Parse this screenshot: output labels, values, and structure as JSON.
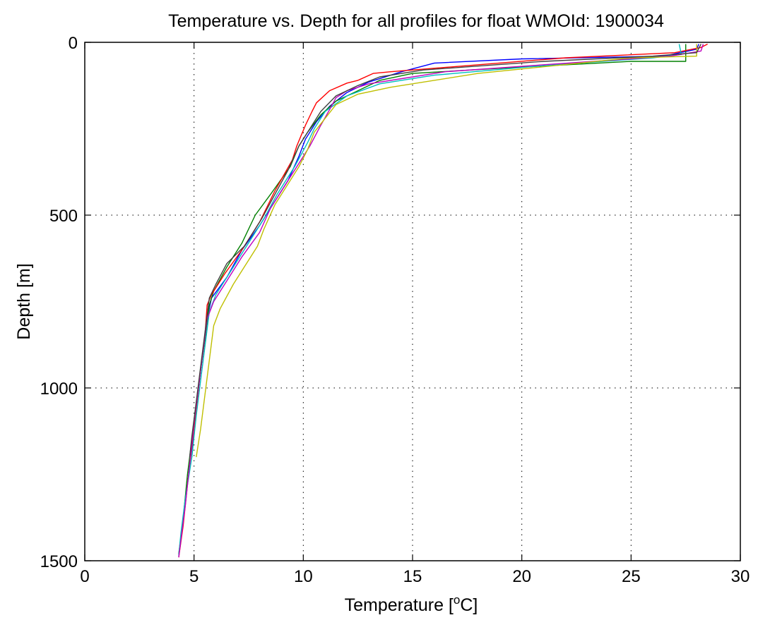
{
  "chart_data": {
    "type": "line",
    "title": "Temperature vs. Depth for all profiles for float WMOId: 1900034",
    "xlabel": "Temperature [",
    "xlabel_sup": "o",
    "xlabel_suffix": "C]",
    "ylabel": "Depth [m]",
    "xlim": [
      0,
      30
    ],
    "ylim": [
      0,
      1500
    ],
    "y_reversed": true,
    "grid": true,
    "x_ticks": [
      0,
      5,
      10,
      15,
      20,
      25,
      30
    ],
    "y_ticks": [
      0,
      500,
      1000,
      1500
    ],
    "series": [
      {
        "color": "#0000ff",
        "points": [
          [
            28.1,
            5
          ],
          [
            28.0,
            20
          ],
          [
            26.5,
            40
          ],
          [
            20.0,
            48
          ],
          [
            16.0,
            60
          ],
          [
            14.5,
            85
          ],
          [
            13.0,
            115
          ],
          [
            12.0,
            145
          ],
          [
            11.2,
            185
          ],
          [
            10.6,
            230
          ],
          [
            10.1,
            280
          ],
          [
            9.8,
            330
          ],
          [
            9.3,
            400
          ],
          [
            8.6,
            470
          ],
          [
            8.0,
            530
          ],
          [
            7.2,
            600
          ],
          [
            6.5,
            680
          ],
          [
            5.8,
            740
          ],
          [
            5.6,
            800
          ],
          [
            5.4,
            900
          ],
          [
            5.2,
            1000
          ],
          [
            5.0,
            1100
          ],
          [
            4.9,
            1200
          ]
        ]
      },
      {
        "color": "#008000",
        "points": [
          [
            27.5,
            5
          ],
          [
            27.5,
            55
          ],
          [
            25.0,
            55
          ],
          [
            19.0,
            75
          ],
          [
            15.0,
            90
          ],
          [
            13.5,
            110
          ],
          [
            12.5,
            140
          ],
          [
            11.5,
            170
          ],
          [
            10.8,
            210
          ],
          [
            10.2,
            260
          ],
          [
            9.8,
            300
          ],
          [
            9.4,
            360
          ],
          [
            8.5,
            440
          ],
          [
            7.8,
            500
          ],
          [
            7.2,
            580
          ],
          [
            6.5,
            650
          ],
          [
            5.9,
            720
          ],
          [
            5.7,
            760
          ],
          [
            5.5,
            860
          ],
          [
            5.3,
            950
          ],
          [
            5.1,
            1050
          ],
          [
            4.9,
            1150
          ],
          [
            4.7,
            1250
          ],
          [
            4.5,
            1380
          ],
          [
            4.3,
            1480
          ]
        ]
      },
      {
        "color": "#ff0000",
        "points": [
          [
            28.5,
            5
          ],
          [
            28.2,
            15
          ],
          [
            27.0,
            30
          ],
          [
            22.0,
            45
          ],
          [
            17.0,
            70
          ],
          [
            14.0,
            85
          ],
          [
            13.2,
            90
          ],
          [
            12.5,
            110
          ],
          [
            12.0,
            118
          ],
          [
            11.2,
            140
          ],
          [
            10.6,
            175
          ],
          [
            10.4,
            200
          ],
          [
            10.1,
            240
          ],
          [
            9.9,
            270
          ],
          [
            9.7,
            300
          ],
          [
            9.5,
            340
          ],
          [
            8.7,
            430
          ],
          [
            8.0,
            520
          ],
          [
            7.2,
            600
          ],
          [
            6.4,
            670
          ],
          [
            5.8,
            730
          ],
          [
            5.6,
            760
          ],
          [
            5.5,
            850
          ],
          [
            5.3,
            950
          ],
          [
            5.1,
            1060
          ],
          [
            4.9,
            1170
          ],
          [
            4.7,
            1280
          ],
          [
            4.5,
            1400
          ],
          [
            4.3,
            1490
          ]
        ]
      },
      {
        "color": "#00bfbf",
        "points": [
          [
            27.2,
            5
          ],
          [
            27.3,
            35
          ],
          [
            26.0,
            45
          ],
          [
            20.5,
            70
          ],
          [
            16.0,
            95
          ],
          [
            13.5,
            120
          ],
          [
            12.0,
            155
          ],
          [
            11.0,
            200
          ],
          [
            10.5,
            250
          ],
          [
            10.2,
            290
          ],
          [
            9.6,
            360
          ],
          [
            8.8,
            440
          ],
          [
            8.2,
            510
          ],
          [
            7.4,
            590
          ],
          [
            6.6,
            670
          ],
          [
            6.0,
            730
          ],
          [
            5.7,
            780
          ],
          [
            5.5,
            880
          ],
          [
            5.3,
            980
          ],
          [
            5.1,
            1080
          ],
          [
            4.9,
            1200
          ],
          [
            4.6,
            1320
          ],
          [
            4.4,
            1420
          ],
          [
            4.3,
            1485
          ]
        ]
      },
      {
        "color": "#bf00bf",
        "points": [
          [
            28.3,
            5
          ],
          [
            28.2,
            25
          ],
          [
            26.8,
            40
          ],
          [
            21.0,
            65
          ],
          [
            16.5,
            85
          ],
          [
            14.5,
            105
          ],
          [
            13.0,
            120
          ],
          [
            12.0,
            140
          ],
          [
            11.5,
            160
          ],
          [
            11.2,
            195
          ],
          [
            10.8,
            240
          ],
          [
            10.3,
            300
          ],
          [
            9.7,
            360
          ],
          [
            9.0,
            430
          ],
          [
            8.5,
            480
          ],
          [
            8.0,
            550
          ],
          [
            7.2,
            620
          ],
          [
            6.5,
            690
          ],
          [
            5.9,
            750
          ],
          [
            5.6,
            800
          ],
          [
            5.4,
            900
          ],
          [
            5.2,
            1000
          ],
          [
            5.0,
            1100
          ],
          [
            4.8,
            1220
          ],
          [
            4.6,
            1340
          ],
          [
            4.4,
            1440
          ],
          [
            4.3,
            1490
          ]
        ]
      },
      {
        "color": "#bfbf00",
        "points": [
          [
            28.0,
            5
          ],
          [
            28.0,
            40
          ],
          [
            25.0,
            45
          ],
          [
            18.0,
            90
          ],
          [
            14.0,
            130
          ],
          [
            12.5,
            150
          ],
          [
            11.5,
            180
          ],
          [
            10.5,
            260
          ],
          [
            10.2,
            310
          ],
          [
            9.8,
            360
          ],
          [
            9.2,
            420
          ],
          [
            8.7,
            470
          ],
          [
            8.2,
            540
          ],
          [
            7.9,
            590
          ],
          [
            7.5,
            630
          ],
          [
            6.8,
            700
          ],
          [
            6.2,
            770
          ],
          [
            5.9,
            820
          ],
          [
            5.7,
            920
          ],
          [
            5.5,
            1020
          ],
          [
            5.3,
            1120
          ],
          [
            5.1,
            1200
          ]
        ]
      },
      {
        "color": "#404040",
        "points": [
          [
            28.2,
            5
          ],
          [
            28.0,
            30
          ],
          [
            26.0,
            40
          ],
          [
            21.0,
            55
          ],
          [
            15.5,
            80
          ],
          [
            13.5,
            100
          ],
          [
            12.5,
            125
          ],
          [
            11.5,
            155
          ],
          [
            10.8,
            200
          ],
          [
            10.3,
            250
          ],
          [
            9.8,
            300
          ],
          [
            9.3,
            370
          ],
          [
            8.7,
            440
          ],
          [
            8.1,
            510
          ],
          [
            7.3,
            590
          ],
          [
            6.5,
            640
          ],
          [
            6.0,
            700
          ],
          [
            5.7,
            740
          ],
          [
            5.5,
            840
          ],
          [
            5.3,
            940
          ],
          [
            5.1,
            1040
          ],
          [
            4.9,
            1140
          ],
          [
            4.8,
            1200
          ]
        ]
      }
    ]
  }
}
